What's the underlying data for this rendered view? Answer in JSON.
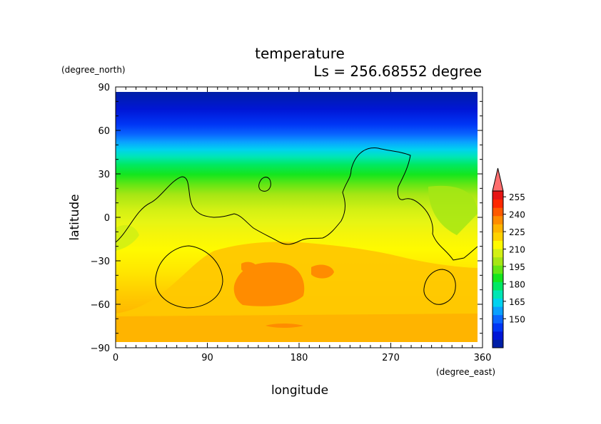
{
  "chart_data": {
    "type": "heatmap",
    "title": "temperature",
    "subtitle": "Ls = 256.68552 degree",
    "xlabel": "longitude",
    "ylabel": "latitude",
    "x_unit": "(degree_east)",
    "y_unit": "(degree_north)",
    "xlim": [
      0,
      360
    ],
    "ylim": [
      -90,
      90
    ],
    "x_ticks": [
      0,
      90,
      180,
      270,
      360
    ],
    "y_ticks": [
      90,
      60,
      30,
      0,
      -30,
      -60,
      -90
    ],
    "data_extent": {
      "lon": [
        0,
        356
      ],
      "lat": [
        -87,
        86
      ]
    },
    "colorbar": {
      "levels": [
        150,
        165,
        180,
        195,
        210,
        225,
        240,
        255
      ],
      "colors": [
        "#001fa6",
        "#0016d6",
        "#0036f5",
        "#0a66ff",
        "#0aa0ff",
        "#00d2f0",
        "#00e6b4",
        "#00e864",
        "#14e61e",
        "#64e614",
        "#a6e614",
        "#d2f014",
        "#fffa00",
        "#ffd200",
        "#ffb400",
        "#ff8c00",
        "#ff5a00",
        "#ff2800",
        "#e61414",
        "#ff6e6e"
      ],
      "extend": "max"
    },
    "field_profile": [
      {
        "lat": 86,
        "value": 147
      },
      {
        "lat": 75,
        "value": 150
      },
      {
        "lat": 65,
        "value": 164
      },
      {
        "lat": 55,
        "value": 184
      },
      {
        "lat": 45,
        "value": 194
      },
      {
        "lat": 35,
        "value": 203
      },
      {
        "lat": 25,
        "value": 213
      },
      {
        "lat": 15,
        "value": 217
      },
      {
        "lat": 5,
        "value": 218
      },
      {
        "lat": -5,
        "value": 220
      },
      {
        "lat": -15,
        "value": 222
      },
      {
        "lat": -25,
        "value": 224
      },
      {
        "lat": -35,
        "value": 226
      },
      {
        "lat": -45,
        "value": 227
      },
      {
        "lat": -55,
        "value": 226
      },
      {
        "lat": -65,
        "value": 228
      },
      {
        "lat": -75,
        "value": 232
      },
      {
        "lat": -87,
        "value": 233
      }
    ]
  }
}
